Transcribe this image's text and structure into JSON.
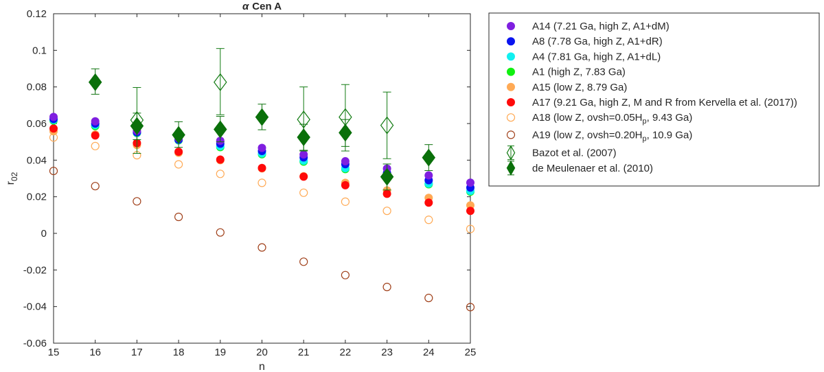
{
  "chart_data": {
    "type": "scatter",
    "title": "α Cen A",
    "title_symbol": "α",
    "title_rest": "Cen A",
    "xlabel": "n",
    "ylabel": "r",
    "ylabel_sub": "02",
    "xlim": [
      15,
      25
    ],
    "ylim": [
      -0.06,
      0.12
    ],
    "xticks": [
      "15",
      "16",
      "17",
      "18",
      "19",
      "20",
      "21",
      "22",
      "23",
      "24",
      "25"
    ],
    "yticks": [
      "-0.06",
      "-0.04",
      "-0.02",
      "0",
      "0.02",
      "0.04",
      "0.06",
      "0.08",
      "0.1",
      "0.12"
    ],
    "grid": false,
    "legend_placement": "outside-right",
    "x": [
      15,
      16,
      17,
      18,
      19,
      20,
      21,
      22,
      23,
      24,
      25
    ],
    "series": [
      {
        "name": "A14 (7.21 Ga, high Z, A1+dM)",
        "color": "#7f1fe0",
        "marker": "filled-circle",
        "values": [
          0.0636,
          0.0612,
          0.056,
          0.052,
          0.0506,
          0.0467,
          0.0431,
          0.0394,
          0.0354,
          0.0317,
          0.0277
        ]
      },
      {
        "name": "A8 (7.78 Ga, high Z, A1+dR)",
        "color": "#0a14f0",
        "marker": "filled-circle",
        "values": [
          0.0625,
          0.06,
          0.0552,
          0.0512,
          0.049,
          0.045,
          0.0415,
          0.0378,
          0.033,
          0.029,
          0.025
        ]
      },
      {
        "name": "A4 (7.81 Ga, high Z, A1+dL)",
        "color": "#10f0f0",
        "marker": "filled-circle",
        "values": [
          0.062,
          0.0592,
          0.055,
          0.051,
          0.0476,
          0.0437,
          0.0397,
          0.0356,
          0.0315,
          0.0272,
          0.0232
        ]
      },
      {
        "name": "A1 (high Z, 7.83 Ga)",
        "color": "#10f010",
        "marker": "filled-circle",
        "values": [
          0.0616,
          0.0586,
          0.0548,
          0.0508,
          0.0471,
          0.0432,
          0.0392,
          0.0351,
          0.031,
          0.0268,
          0.0228
        ]
      },
      {
        "name": "A15 (low Z, 8.79 Ga)",
        "color": "#ffaa55",
        "marker": "filled-circle",
        "values": [
          0.0558,
          0.054,
          0.0483,
          0.044,
          0.04,
          0.0355,
          0.0312,
          0.0276,
          0.0235,
          0.0194,
          0.0153
        ]
      },
      {
        "name": "A17 (9.21 Ga, high Z, M and R from Kervella et al. (2017))",
        "color": "#ff0a0a",
        "marker": "filled-circle",
        "values": [
          0.0573,
          0.0535,
          0.0493,
          0.0446,
          0.0403,
          0.0357,
          0.031,
          0.0263,
          0.0216,
          0.0168,
          0.0123
        ]
      },
      {
        "name": "A18 (low Z, ovsh=0.05Hp, 9.43 Ga)",
        "label_main": "A18 (low Z, ovsh=0.05H",
        "label_sub": "p",
        "label_tail": ", 9.43 Ga)",
        "color": "#ffaa55",
        "marker": "open-circle",
        "values": [
          0.0524,
          0.0477,
          0.0427,
          0.0377,
          0.0325,
          0.0276,
          0.0222,
          0.0173,
          0.0123,
          0.0074,
          0.0024
        ]
      },
      {
        "name": "A19 (low Z, ovsh=0.20Hp, 10.9 Ga)",
        "label_main": "A19 (low Z, ovsh=0.20H",
        "label_sub": "p",
        "label_tail": ", 10.9 Ga)",
        "color": "#a0401a",
        "marker": "open-circle",
        "values": [
          0.0341,
          0.0258,
          0.0175,
          0.009,
          0.0005,
          -0.0077,
          -0.0155,
          -0.0228,
          -0.0293,
          -0.0353,
          -0.0403
        ]
      },
      {
        "name": "Bazot et al. (2007)",
        "color": "#107a10",
        "marker": "open-diamond",
        "x": [
          17,
          19,
          21,
          22,
          23
        ],
        "values": [
          0.0619,
          0.0826,
          0.0622,
          0.0635,
          0.059
        ],
        "err_low": [
          0.0437,
          0.0648,
          0.045,
          0.045,
          0.0408
        ],
        "err_high": [
          0.0797,
          0.101,
          0.08,
          0.0813,
          0.0772
        ]
      },
      {
        "name": "de Meulenaer et al. (2010)",
        "color": "#0a700a",
        "marker": "filled-diamond",
        "x": [
          16,
          17,
          18,
          19,
          20,
          21,
          22,
          23,
          24
        ],
        "values": [
          0.0826,
          0.0587,
          0.0538,
          0.0568,
          0.0635,
          0.0525,
          0.055,
          0.0309,
          0.0414
        ],
        "err_low": [
          0.076,
          0.0512,
          0.047,
          0.05,
          0.0566,
          0.0454,
          0.0475,
          0.0237,
          0.0343
        ],
        "err_high": [
          0.0899,
          0.0657,
          0.061,
          0.0639,
          0.0706,
          0.0596,
          0.0622,
          0.0379,
          0.0485
        ]
      }
    ]
  }
}
